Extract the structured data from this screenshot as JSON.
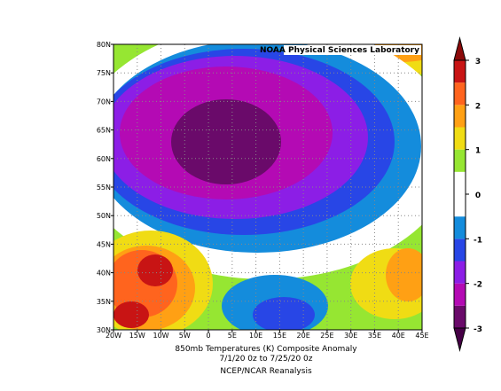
{
  "header": {
    "credit": "NOAA Physical Sciences Laboratory"
  },
  "map": {
    "xlim": [
      -20,
      45
    ],
    "ylim": [
      30,
      80
    ],
    "xticks": [
      {
        "value": -20,
        "label": "20W"
      },
      {
        "value": -15,
        "label": "15W"
      },
      {
        "value": -10,
        "label": "10W"
      },
      {
        "value": -5,
        "label": "5W"
      },
      0,
      {
        "value": 5,
        "label": "5E"
      },
      {
        "value": 10,
        "label": "10E"
      },
      {
        "value": 15,
        "label": "15E"
      },
      {
        "value": 20,
        "label": "20E"
      },
      {
        "value": 25,
        "label": "25E"
      },
      {
        "value": 30,
        "label": "30E"
      },
      {
        "value": 35,
        "label": "35E"
      },
      {
        "value": 40,
        "label": "40E"
      },
      {
        "value": 45,
        "label": "45E"
      }
    ],
    "yticks": [
      {
        "value": 30,
        "label": "30N"
      },
      {
        "value": 35,
        "label": "35N"
      },
      {
        "value": 40,
        "label": "40N"
      },
      {
        "value": 45,
        "label": "45N"
      },
      {
        "value": 50,
        "label": "50N"
      },
      {
        "value": 55,
        "label": "55N"
      },
      {
        "value": 60,
        "label": "60N"
      },
      {
        "value": 65,
        "label": "65N"
      },
      {
        "value": 70,
        "label": "70N"
      },
      {
        "value": 75,
        "label": "75N"
      },
      {
        "value": 80,
        "label": "80N"
      }
    ],
    "grid": true
  },
  "colorbar": {
    "lim": [
      -3,
      3
    ],
    "ticks": [
      -3,
      -2,
      -1,
      0,
      1,
      2,
      3
    ],
    "colors": [
      "#6a0a6a",
      "#b40ab4",
      "#8c1ee6",
      "#2846e6",
      "#148cdc",
      "#ffffff",
      "#ffffff",
      "#96e632",
      "#f0dc14",
      "#ffa014",
      "#ff641e",
      "#c81414"
    ],
    "under": "#460046",
    "over": "#8c0a0a"
  },
  "caption": {
    "line1": "850mb Temperatures (K)  Composite Anomaly",
    "line2": "7/1/20 0z  to 7/25/20 0z",
    "line3": "NCEP/NCAR Reanalysis"
  }
}
